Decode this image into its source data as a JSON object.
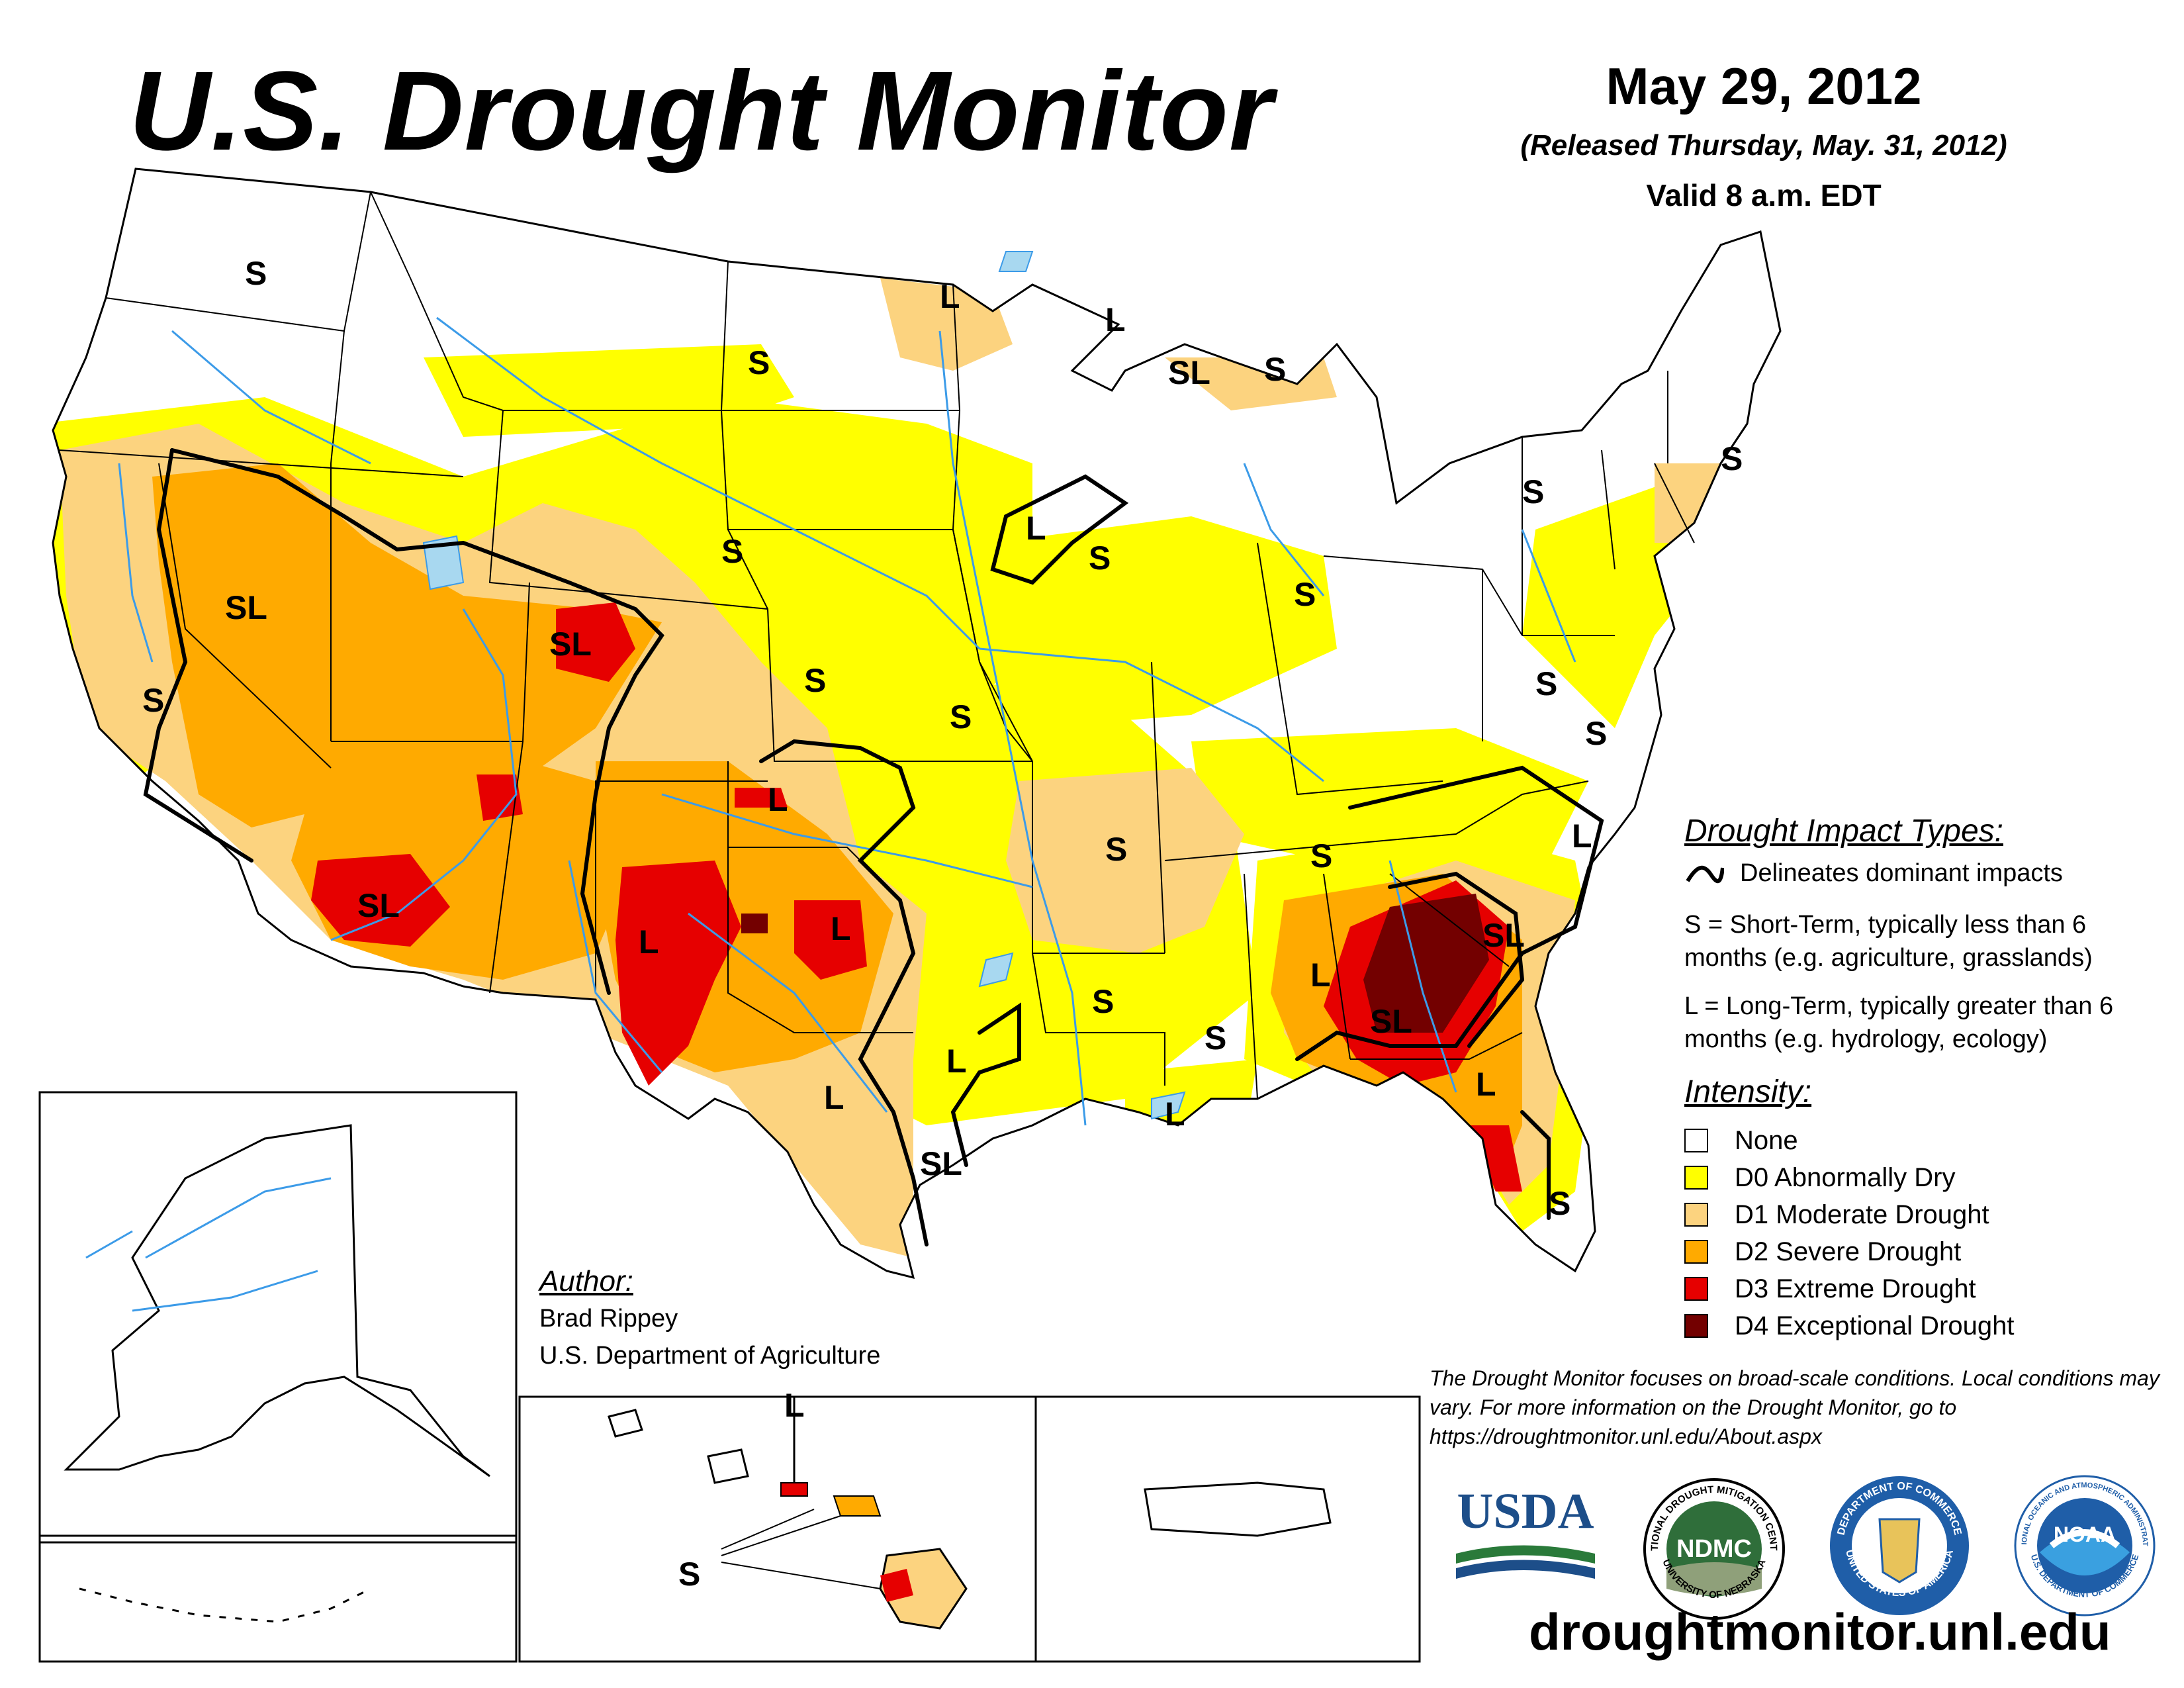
{
  "header": {
    "title": "U.S. Drought Monitor",
    "date": "May 29, 2012",
    "released": "(Released Thursday, May. 31, 2012)",
    "valid": "Valid 8 a.m. EDT"
  },
  "colors": {
    "none": "#ffffff",
    "d0": "#ffff00",
    "d1": "#fcd37f",
    "d2": "#ffaa00",
    "d3": "#e60000",
    "d4": "#730000",
    "water": "#3c9be8",
    "lake": "#a8d8f0"
  },
  "impact_types": {
    "heading": "Drought Impact Types:",
    "delineates": "Delineates dominant impacts",
    "short_term": "S = Short-Term, typically less than 6 months (e.g. agriculture, grasslands)",
    "long_term": "L = Long-Term, typically greater than 6 months (e.g. hydrology, ecology)"
  },
  "intensity": {
    "heading": "Intensity:",
    "items": [
      {
        "label": "None",
        "color": "#ffffff"
      },
      {
        "label": "D0 Abnormally Dry",
        "color": "#ffff00"
      },
      {
        "label": "D1 Moderate Drought",
        "color": "#fcd37f"
      },
      {
        "label": "D2 Severe Drought",
        "color": "#ffaa00"
      },
      {
        "label": "D3 Extreme Drought",
        "color": "#e60000"
      },
      {
        "label": "D4 Exceptional Drought",
        "color": "#730000"
      }
    ]
  },
  "author": {
    "heading": "Author:",
    "name": "Brad Rippey",
    "org": "U.S. Department of Agriculture"
  },
  "disclaimer": "The Drought Monitor focuses on broad-scale conditions. Local conditions may vary. For more information on the Drought Monitor, go to https://droughtmonitor.unl.edu/About.aspx",
  "logos": {
    "usda": "USDA",
    "ndmc": "NDMC",
    "ndmc_ring": "NATIONAL DROUGHT MITIGATION CENTER",
    "ndmc_ring_bottom": "UNIVERSITY OF NEBRASKA",
    "doc_ring": "DEPARTMENT OF COMMERCE",
    "doc_ring_bottom": "UNITED STATES OF AMERICA",
    "noaa": "NOAA",
    "noaa_ring": "NATIONAL OCEANIC AND ATMOSPHERIC ADMINISTRATION",
    "noaa_ring_bottom": "U.S. DEPARTMENT OF COMMERCE"
  },
  "website": "droughtmonitor.unl.edu",
  "map_labels": {
    "s": "S",
    "l": "L",
    "sl": "SL"
  }
}
